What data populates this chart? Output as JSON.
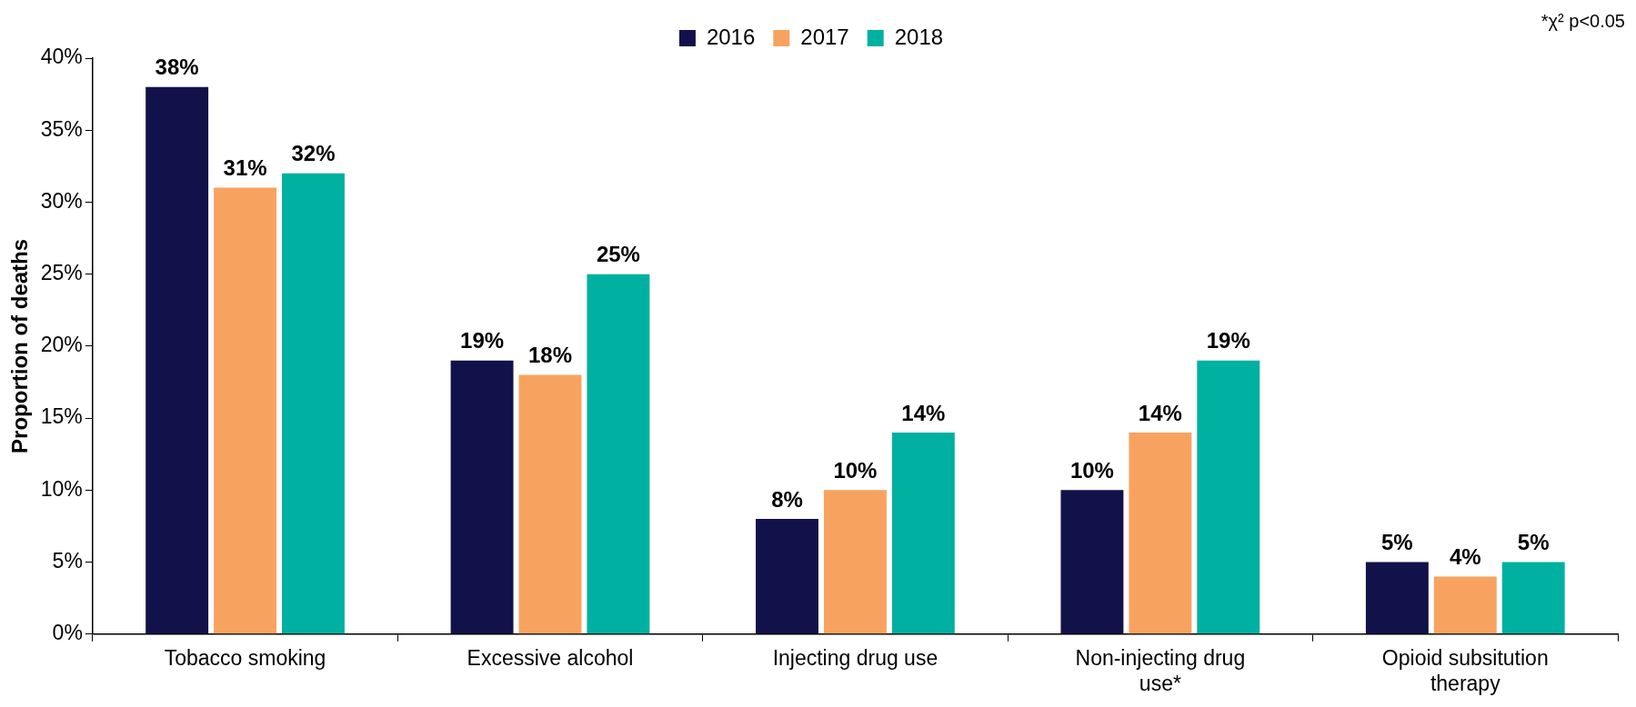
{
  "chart_data": {
    "type": "bar",
    "ylabel": "Proportion of deaths",
    "categories": [
      "Tobacco smoking",
      "Excessive alcohol",
      "Injecting drug use",
      "Non-injecting drug use*",
      "Opioid subsitution therapy"
    ],
    "series": [
      {
        "name": "2016",
        "color": "#12124a",
        "values": [
          38,
          19,
          8,
          10,
          5
        ],
        "value_labels": [
          "38%",
          "19%",
          "8%",
          "10%",
          "5%"
        ]
      },
      {
        "name": "2017",
        "color": "#f7a35f",
        "values": [
          31,
          18,
          10,
          14,
          4
        ],
        "value_labels": [
          "31%",
          "18%",
          "10%",
          "14%",
          "4%"
        ]
      },
      {
        "name": "2018",
        "color": "#00b0a0",
        "values": [
          32,
          25,
          14,
          19,
          5
        ],
        "value_labels": [
          "32%",
          "25%",
          "14%",
          "19%",
          "5%"
        ]
      }
    ],
    "ylim": [
      0,
      40
    ],
    "yticks": [
      {
        "value": 0,
        "label": "0%"
      },
      {
        "value": 5,
        "label": "5%"
      },
      {
        "value": 10,
        "label": "10%"
      },
      {
        "value": 15,
        "label": "15%"
      },
      {
        "value": 20,
        "label": "20%"
      },
      {
        "value": 25,
        "label": "25%"
      },
      {
        "value": 30,
        "label": "30%"
      },
      {
        "value": 35,
        "label": "35%"
      },
      {
        "value": 40,
        "label": "40%"
      }
    ],
    "grid": false,
    "legend": "top",
    "annotations": [
      "*χ² p<0.05"
    ]
  }
}
